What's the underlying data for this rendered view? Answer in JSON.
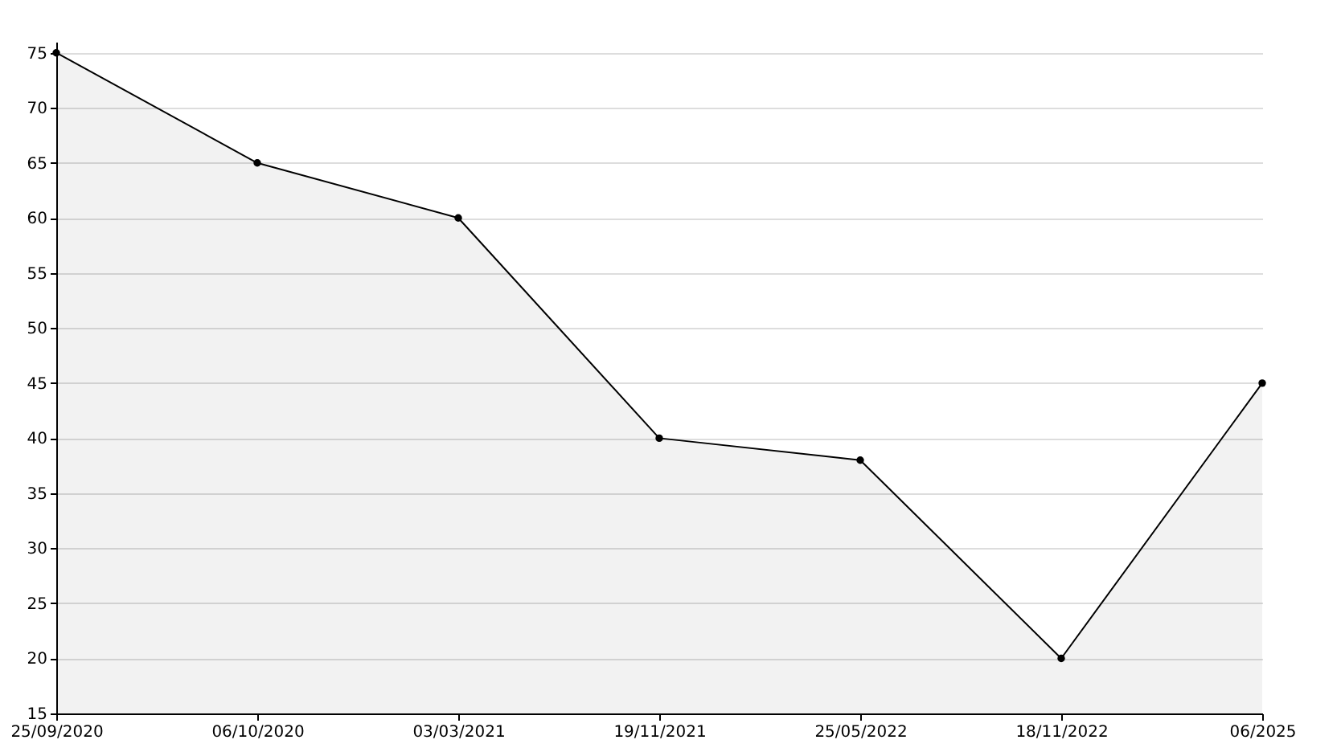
{
  "chart_data": {
    "type": "area",
    "categories": [
      "25/09/2020",
      "06/10/2020",
      "03/03/2021",
      "19/11/2021",
      "25/05/2022",
      "18/11/2022",
      "06/2025"
    ],
    "series": [
      {
        "color": "#000000",
        "values": [
          75,
          65,
          60,
          40,
          38,
          20,
          45
        ]
      }
    ],
    "ylim": [
      15,
      76
    ],
    "yticks": [
      15,
      20,
      25,
      30,
      35,
      40,
      45,
      50,
      55,
      60,
      65,
      70,
      75
    ],
    "grid": "y",
    "marker": "circle"
  }
}
